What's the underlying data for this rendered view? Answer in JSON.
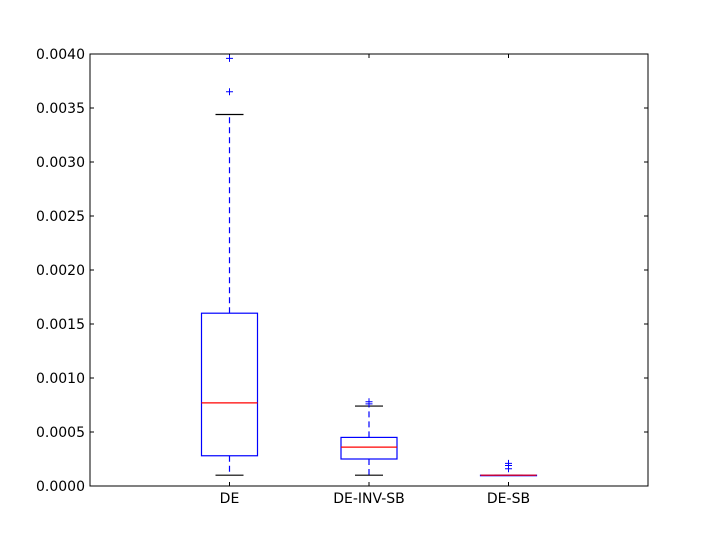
{
  "chart_data": {
    "type": "box",
    "categories": [
      "DE",
      "DE-INV-SB",
      "DE-SB"
    ],
    "ylim": [
      0,
      0.004
    ],
    "yticks": [
      "0.0000",
      "0.0005",
      "0.0010",
      "0.0015",
      "0.0020",
      "0.0025",
      "0.0030",
      "0.0035",
      "0.0040"
    ],
    "ytick_values": [
      0,
      0.0005,
      0.001,
      0.0015,
      0.002,
      0.0025,
      0.003,
      0.0035,
      0.004
    ],
    "boxes": [
      {
        "name": "DE",
        "whisker_low": 0.0001,
        "q1": 0.00028,
        "median": 0.00077,
        "q3": 0.0016,
        "whisker_high": 0.00344,
        "outliers": [
          0.00365,
          0.00396
        ]
      },
      {
        "name": "DE-INV-SB",
        "whisker_low": 0.0001,
        "q1": 0.00025,
        "median": 0.00036,
        "q3": 0.00045,
        "whisker_high": 0.00074,
        "outliers": [
          0.00076,
          0.00078
        ]
      },
      {
        "name": "DE-SB",
        "whisker_low": 0.0001,
        "q1": 0.0001,
        "median": 0.0001,
        "q3": 0.0001,
        "whisker_high": 0.0001,
        "outliers": [
          0.00016,
          0.00019,
          0.00021
        ]
      }
    ],
    "grid": false,
    "title": "",
    "xlabel": "",
    "ylabel": "",
    "colors": {
      "box": "#0000ff",
      "median": "#ff0000",
      "whisker_cap": "#000000",
      "outlier": "#0000ff",
      "axes": "#000000"
    }
  }
}
